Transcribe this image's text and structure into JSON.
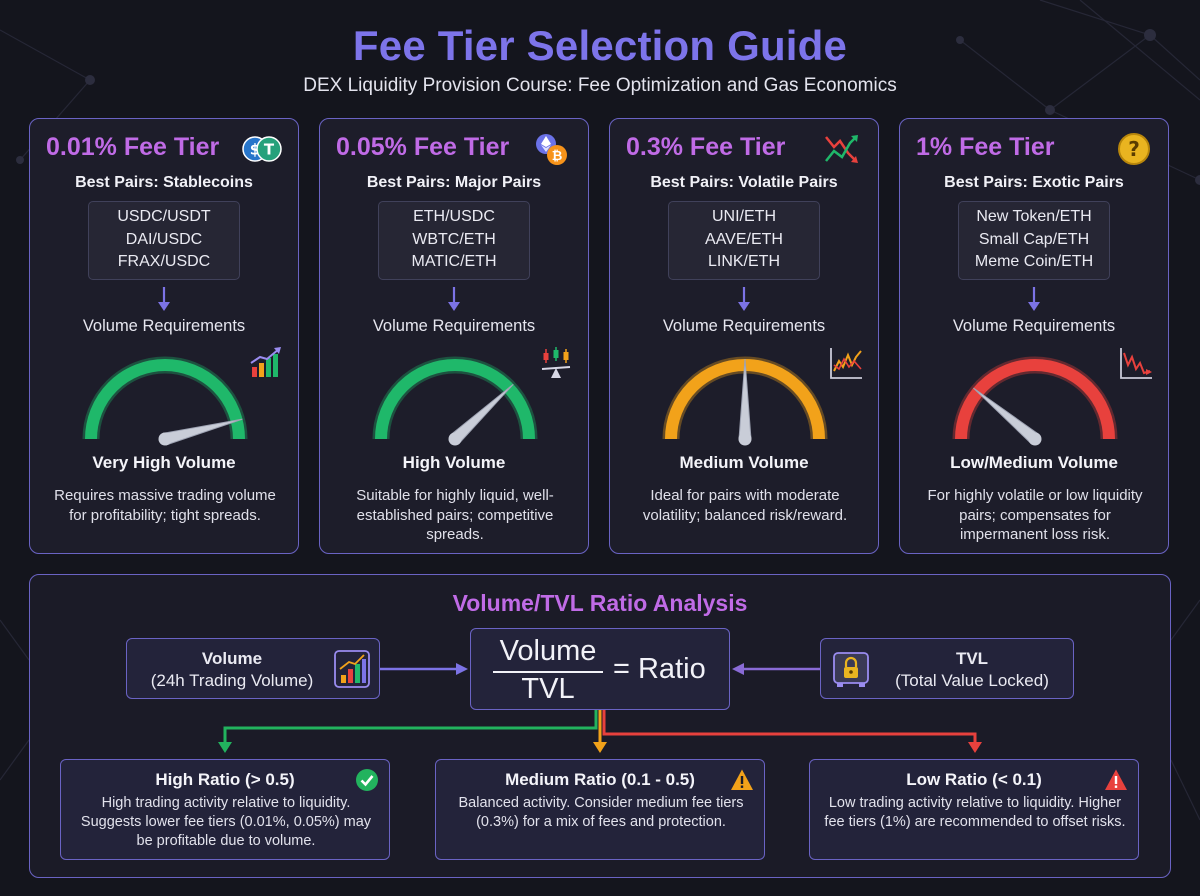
{
  "title": "Fee Tier Selection Guide",
  "subtitle": "DEX Liquidity Provision Course: Fee Optimization and Gas Economics",
  "tiers": [
    {
      "title": "0.01% Fee Tier",
      "best_pairs": "Best Pairs: Stablecoins",
      "pairs": [
        "USDC/USDT",
        "DAI/USDC",
        "FRAX/USDC"
      ],
      "volume_label": "Volume Requirements",
      "gauge_level": 0.92,
      "gauge_color": "#1fb86a",
      "level": "Very High Volume",
      "description": "Requires massive trading volume for profitability; tight spreads.",
      "icon": "stablecoin-coins-icon",
      "mini_icon": "rising-bar-chart-icon"
    },
    {
      "title": "0.05% Fee Tier",
      "best_pairs": "Best Pairs: Major Pairs",
      "pairs": [
        "ETH/USDC",
        "WBTC/ETH",
        "MATIC/ETH"
      ],
      "volume_label": "Volume Requirements",
      "gauge_level": 0.76,
      "gauge_color": "#1fb86a",
      "level": "High Volume",
      "description": "Suitable for highly liquid, well-established pairs; competitive spreads.",
      "icon": "eth-btc-coins-icon",
      "mini_icon": "candlestick-scale-icon"
    },
    {
      "title": "0.3% Fee Tier",
      "best_pairs": "Best Pairs: Volatile Pairs",
      "pairs": [
        "UNI/ETH",
        "AAVE/ETH",
        "LINK/ETH"
      ],
      "volume_label": "Volume Requirements",
      "gauge_level": 0.5,
      "gauge_color": "#f2a21a",
      "level": "Medium Volume",
      "description": "Ideal for pairs with moderate volatility; balanced risk/reward.",
      "icon": "volatile-arrows-icon",
      "mini_icon": "volatile-line-chart-icon"
    },
    {
      "title": "1% Fee Tier",
      "best_pairs": "Best Pairs: Exotic Pairs",
      "pairs": [
        "New Token/ETH",
        "Small Cap/ETH",
        "Meme Coin/ETH"
      ],
      "volume_label": "Volume Requirements",
      "gauge_level": 0.22,
      "gauge_color": "#e8413d",
      "level": "Low/Medium Volume",
      "description": "For highly volatile or low liquidity pairs; compensates for impermanent loss risk.",
      "icon": "question-coin-icon",
      "mini_icon": "falling-line-chart-icon"
    }
  ],
  "ratio": {
    "title": "Volume/TVL Ratio Analysis",
    "volume_title": "Volume",
    "volume_sub": "(24h Trading Volume)",
    "tvl_title": "TVL",
    "tvl_sub": "(Total Value Locked)",
    "numerator": "Volume",
    "denominator": "TVL",
    "equals": "= Ratio",
    "outcomes": [
      {
        "title": "High Ratio (> 0.5)",
        "description": "High trading activity relative to liquidity. Suggests lower fee tiers (0.01%, 0.05%) may be profitable due to volume.",
        "color": "#22b35e",
        "icon": "check-circle-icon"
      },
      {
        "title": "Medium Ratio (0.1 - 0.5)",
        "description": "Balanced activity. Consider medium fee tiers (0.3%) for a mix of fees and protection.",
        "color": "#f2a21a",
        "icon": "warning-triangle-icon"
      },
      {
        "title": "Low Ratio (< 0.1)",
        "description": "Low trading activity relative to liquidity. Higher fee tiers (1%) are recommended to offset risks.",
        "color": "#e8413d",
        "icon": "alert-triangle-icon"
      }
    ]
  },
  "colors": {
    "accent_title": "#7d74ea",
    "accent_heading": "#c06be6",
    "border": "#6a63c4",
    "background": "#14151d"
  }
}
